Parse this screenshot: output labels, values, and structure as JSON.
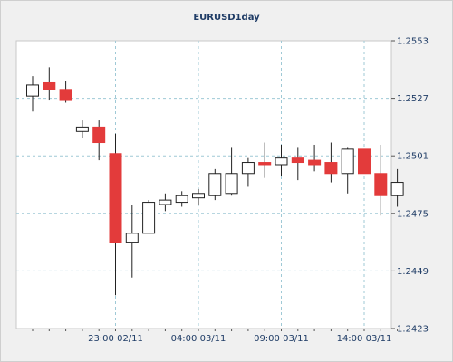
{
  "chart_data": {
    "type": "candlestick",
    "title": "EURUSD1day",
    "xlabel": "",
    "ylabel": "",
    "ylim": [
      1.2423,
      1.2553
    ],
    "y_ticks": [
      "1.2553",
      "1.2527",
      "1.2501",
      "1.2475",
      "1.2449",
      "1.2423"
    ],
    "x_tick_labels": [
      {
        "label": "23:00 02/11",
        "at_index": 5
      },
      {
        "label": "04:00 03/11",
        "at_index": 10
      },
      {
        "label": "09:00 03/11",
        "at_index": 15
      },
      {
        "label": "14:00 03/11",
        "at_index": 20
      }
    ],
    "grid": true,
    "up_color": "#ffffff",
    "down_color": "#e33b3b",
    "candles": [
      {
        "open": 1.2528,
        "high": 1.2537,
        "low": 1.2521,
        "close": 1.2533
      },
      {
        "open": 1.2534,
        "high": 1.2541,
        "low": 1.2526,
        "close": 1.2531
      },
      {
        "open": 1.2531,
        "high": 1.2535,
        "low": 1.2525,
        "close": 1.2526
      },
      {
        "open": 1.2512,
        "high": 1.2517,
        "low": 1.2509,
        "close": 1.2514
      },
      {
        "open": 1.2514,
        "high": 1.2517,
        "low": 1.2499,
        "close": 1.2507
      },
      {
        "open": 1.2502,
        "high": 1.2511,
        "low": 1.2438,
        "close": 1.2462
      },
      {
        "open": 1.2462,
        "high": 1.2479,
        "low": 1.2446,
        "close": 1.2466
      },
      {
        "open": 1.2466,
        "high": 1.2481,
        "low": 1.2466,
        "close": 1.248
      },
      {
        "open": 1.2479,
        "high": 1.2484,
        "low": 1.2476,
        "close": 1.2481
      },
      {
        "open": 1.248,
        "high": 1.2485,
        "low": 1.2478,
        "close": 1.2483
      },
      {
        "open": 1.2482,
        "high": 1.2486,
        "low": 1.2479,
        "close": 1.2484
      },
      {
        "open": 1.2483,
        "high": 1.2495,
        "low": 1.2481,
        "close": 1.2493
      },
      {
        "open": 1.2484,
        "high": 1.2505,
        "low": 1.2483,
        "close": 1.2493
      },
      {
        "open": 1.2493,
        "high": 1.25,
        "low": 1.2487,
        "close": 1.2498
      },
      {
        "open": 1.2498,
        "high": 1.2507,
        "low": 1.2491,
        "close": 1.2497
      },
      {
        "open": 1.2497,
        "high": 1.2506,
        "low": 1.2492,
        "close": 1.25
      },
      {
        "open": 1.25,
        "high": 1.2505,
        "low": 1.249,
        "close": 1.2498
      },
      {
        "open": 1.2499,
        "high": 1.2506,
        "low": 1.2494,
        "close": 1.2497
      },
      {
        "open": 1.2498,
        "high": 1.2507,
        "low": 1.2489,
        "close": 1.2493
      },
      {
        "open": 1.2493,
        "high": 1.2505,
        "low": 1.2484,
        "close": 1.2504
      },
      {
        "open": 1.2504,
        "high": 1.2504,
        "low": 1.2493,
        "close": 1.2493
      },
      {
        "open": 1.2493,
        "high": 1.2506,
        "low": 1.2474,
        "close": 1.2483
      },
      {
        "open": 1.2483,
        "high": 1.2495,
        "low": 1.2478,
        "close": 1.2489
      }
    ]
  }
}
